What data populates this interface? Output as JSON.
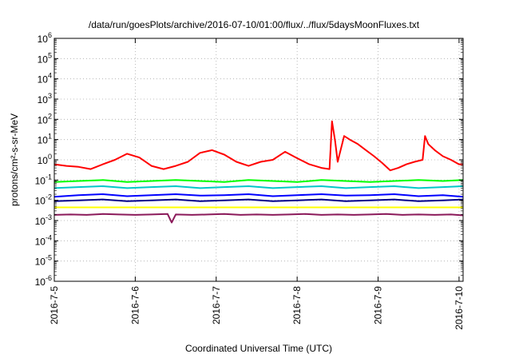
{
  "chart_data": {
    "type": "line",
    "title": "/data/run/goesPlots/archive/2016-07-10/01:00/flux/../flux/5daysMoonFluxes.txt",
    "xlabel": "Coordinated Universal Time (UTC)",
    "ylabel": "protons/cm²-s-sr-MeV",
    "y_scale": "log",
    "ylim": [
      1e-06,
      1000000.0
    ],
    "xlim": [
      0,
      5.05
    ],
    "grid": true,
    "x_ticks": [
      {
        "value": 0,
        "label": "2016-7-5"
      },
      {
        "value": 1,
        "label": "2016-7-6"
      },
      {
        "value": 2,
        "label": "2016-7-7"
      },
      {
        "value": 3,
        "label": "2016-7-8"
      },
      {
        "value": 4,
        "label": "2016-7-9"
      },
      {
        "value": 5,
        "label": "2016-7-10"
      }
    ],
    "y_ticks": [
      {
        "exp": "6"
      },
      {
        "exp": "5"
      },
      {
        "exp": "4"
      },
      {
        "exp": "3"
      },
      {
        "exp": "2"
      },
      {
        "exp": "1"
      },
      {
        "exp": "0"
      },
      {
        "exp": "-1"
      },
      {
        "exp": "-2"
      },
      {
        "exp": "-3"
      },
      {
        "exp": "-4"
      },
      {
        "exp": "-5"
      },
      {
        "exp": "-6"
      }
    ],
    "series": [
      {
        "color": "#ff0000",
        "x": [
          0,
          0.15,
          0.3,
          0.45,
          0.6,
          0.75,
          0.9,
          1.05,
          1.2,
          1.35,
          1.5,
          1.65,
          1.8,
          1.95,
          2.1,
          2.25,
          2.4,
          2.55,
          2.7,
          2.85,
          3.0,
          3.15,
          3.3,
          3.4,
          3.43,
          3.47,
          3.5,
          3.58,
          3.65,
          3.75,
          3.85,
          3.95,
          4.05,
          4.15,
          4.25,
          4.35,
          4.45,
          4.55,
          4.58,
          4.62,
          4.7,
          4.8,
          4.9,
          5.0,
          5.05
        ],
        "y": [
          0.6,
          0.5,
          0.45,
          0.35,
          0.6,
          1.0,
          2.0,
          1.3,
          0.5,
          0.35,
          0.5,
          0.8,
          2.2,
          3.0,
          1.8,
          0.8,
          0.5,
          0.8,
          1.0,
          2.5,
          1.2,
          0.6,
          0.4,
          0.35,
          80,
          8,
          0.8,
          15,
          10,
          6,
          3,
          1.5,
          0.7,
          0.3,
          0.4,
          0.6,
          0.8,
          1.0,
          15,
          6,
          3,
          1.5,
          1.0,
          0.6,
          0.6
        ]
      },
      {
        "color": "#00ff00",
        "x": [
          0,
          0.3,
          0.6,
          0.9,
          1.2,
          1.5,
          1.8,
          2.1,
          2.4,
          2.7,
          3.0,
          3.3,
          3.6,
          3.9,
          4.2,
          4.5,
          4.8,
          5.05
        ],
        "y": [
          0.08,
          0.09,
          0.1,
          0.08,
          0.09,
          0.1,
          0.09,
          0.08,
          0.1,
          0.09,
          0.08,
          0.1,
          0.09,
          0.08,
          0.09,
          0.1,
          0.09,
          0.1
        ]
      },
      {
        "color": "#00c8c8",
        "x": [
          0,
          0.3,
          0.6,
          0.9,
          1.2,
          1.5,
          1.8,
          2.1,
          2.4,
          2.7,
          3.0,
          3.3,
          3.6,
          3.9,
          4.2,
          4.5,
          4.8,
          5.05
        ],
        "y": [
          0.04,
          0.045,
          0.05,
          0.04,
          0.045,
          0.05,
          0.04,
          0.045,
          0.05,
          0.04,
          0.045,
          0.05,
          0.04,
          0.045,
          0.05,
          0.04,
          0.045,
          0.05
        ]
      },
      {
        "color": "#0000ff",
        "x": [
          0,
          0.3,
          0.6,
          0.9,
          1.2,
          1.5,
          1.8,
          2.1,
          2.4,
          2.7,
          3.0,
          3.3,
          3.6,
          3.9,
          4.2,
          4.5,
          4.8,
          5.05
        ],
        "y": [
          0.015,
          0.018,
          0.02,
          0.016,
          0.018,
          0.02,
          0.017,
          0.018,
          0.02,
          0.016,
          0.018,
          0.02,
          0.017,
          0.018,
          0.02,
          0.016,
          0.018,
          0.015
        ]
      },
      {
        "color": "#00008b",
        "x": [
          0,
          0.3,
          0.6,
          0.9,
          1.2,
          1.5,
          1.8,
          2.1,
          2.4,
          2.7,
          3.0,
          3.3,
          3.6,
          3.9,
          4.2,
          4.5,
          4.8,
          5.05
        ],
        "y": [
          0.009,
          0.01,
          0.011,
          0.009,
          0.01,
          0.011,
          0.009,
          0.01,
          0.011,
          0.009,
          0.01,
          0.011,
          0.009,
          0.01,
          0.011,
          0.009,
          0.01,
          0.011
        ]
      },
      {
        "color": "#ffff00",
        "x": [
          0,
          0.5,
          1.0,
          1.5,
          2.0,
          2.5,
          3.0,
          3.5,
          4.0,
          4.5,
          5.05
        ],
        "y": [
          0.0045,
          0.0045,
          0.0045,
          0.0045,
          0.0045,
          0.0045,
          0.0045,
          0.0045,
          0.0045,
          0.0045,
          0.0045
        ]
      },
      {
        "color": "#8b1a5a",
        "x": [
          0,
          0.2,
          0.4,
          0.6,
          0.8,
          1.0,
          1.2,
          1.4,
          1.45,
          1.5,
          1.7,
          1.9,
          2.1,
          2.3,
          2.5,
          2.7,
          2.9,
          3.1,
          3.3,
          3.5,
          3.7,
          3.9,
          4.1,
          4.3,
          4.5,
          4.7,
          4.9,
          5.05
        ],
        "y": [
          0.0019,
          0.002,
          0.0019,
          0.0021,
          0.002,
          0.0019,
          0.002,
          0.0021,
          0.0008,
          0.002,
          0.0019,
          0.002,
          0.0021,
          0.0019,
          0.002,
          0.0019,
          0.002,
          0.0021,
          0.0019,
          0.002,
          0.0019,
          0.002,
          0.0021,
          0.0019,
          0.002,
          0.0019,
          0.002,
          0.0018
        ]
      }
    ]
  }
}
